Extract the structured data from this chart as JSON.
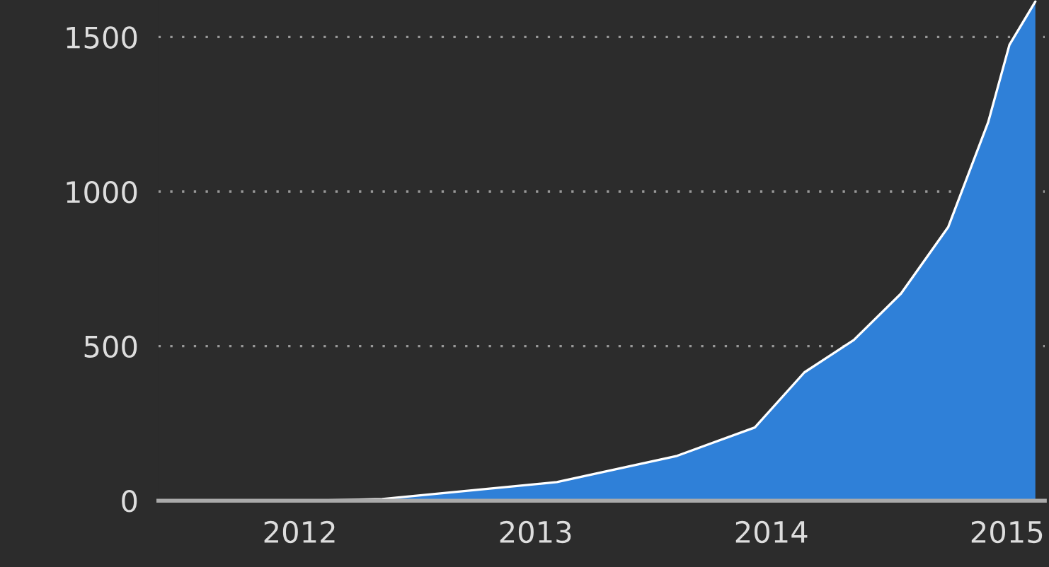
{
  "chart_data": {
    "type": "area",
    "x": [
      2011.4,
      2012.05,
      2012.35,
      2012.41,
      2013.09,
      2013.6,
      2013.93,
      2014.14,
      2014.35,
      2014.55,
      2014.75,
      2014.92,
      2015.01,
      2015.12
    ],
    "series": [
      {
        "color": "#2f80d8",
        "values": [
          0,
          0,
          5,
          10,
          60,
          145,
          237,
          415,
          520,
          670,
          885,
          1225,
          1475,
          1615
        ]
      }
    ],
    "xlim": [
      2011.4,
      2015.16
    ],
    "xticks": [
      2012,
      2013,
      2014,
      2015
    ],
    "ylim": [
      0,
      1620
    ],
    "yticks": [
      0,
      500,
      1000,
      1500
    ],
    "grid": "y"
  }
}
